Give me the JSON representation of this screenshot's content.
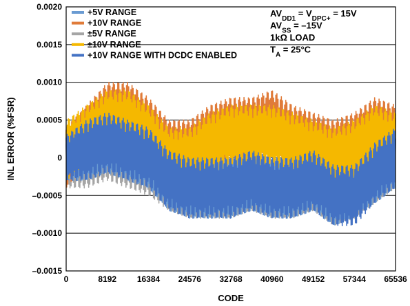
{
  "chart_data": {
    "type": "line",
    "xlabel": "CODE",
    "ylabel": "INL ERROR (%FSR)",
    "xlim": [
      0,
      65536
    ],
    "ylim": [
      -0.0015,
      0.002
    ],
    "x_ticks": [
      "0",
      "8192",
      "16384",
      "24576",
      "32768",
      "40960",
      "49152",
      "57344",
      "65536"
    ],
    "y_ticks": [
      "0.0020",
      "0.0015",
      "0.0010",
      "0.0005",
      "0",
      "–0.0005",
      "–0.0010",
      "–0.0015"
    ],
    "y_tick_values": [
      0.002,
      0.0015,
      0.001,
      0.0005,
      0,
      -0.0005,
      -0.001,
      -0.0015
    ],
    "x_tick_values": [
      0,
      8192,
      16384,
      24576,
      32768,
      40960,
      49152,
      57344,
      65536
    ],
    "grid": "horizontal",
    "legend_position": "top-left",
    "conditions": [
      {
        "main": "AV",
        "sub": "DD1",
        "rest": " = V",
        "sub2": "DPC+",
        "rest2": " = 15V"
      },
      {
        "main": "AV",
        "sub": "SS",
        "rest": " = –15V",
        "sub2": "",
        "rest2": ""
      },
      {
        "main": "1kΩ LOAD",
        "sub": "",
        "rest": "",
        "sub2": "",
        "rest2": ""
      },
      {
        "main": "T",
        "sub": "A",
        "rest": " = 25°C",
        "sub2": "",
        "rest2": ""
      }
    ],
    "series": [
      {
        "name": "+5V RANGE",
        "color": "#6a9bd2",
        "x": [
          0,
          4096,
          8192,
          12288,
          16384,
          20480,
          24576,
          28672,
          32768,
          36864,
          40960,
          45056,
          49152,
          53248,
          57344,
          61440,
          65536
        ],
        "y_mid": [
          0.0,
          0.0001,
          0.0002,
          0.0001,
          0.0,
          -0.0003,
          -0.0004,
          -0.0004,
          -0.0004,
          -0.0003,
          -0.0004,
          -0.0004,
          -0.0003,
          -0.0005,
          -0.0004,
          -0.0002,
          0.0
        ],
        "y_amp": [
          0.0003,
          0.0004,
          0.0004,
          0.0004,
          0.0004,
          0.0004,
          0.0004,
          0.0004,
          0.0004,
          0.0004,
          0.0004,
          0.0004,
          0.0004,
          0.0004,
          0.0004,
          0.0004,
          0.0004
        ]
      },
      {
        "name": "+10V RANGE",
        "color": "#e07b39",
        "x": [
          0,
          4096,
          8192,
          12288,
          16384,
          20480,
          24576,
          28672,
          32768,
          36864,
          40960,
          45056,
          49152,
          53248,
          57344,
          61440,
          65536
        ],
        "y_mid": [
          0.0,
          0.0003,
          0.0006,
          0.0006,
          0.0004,
          0.0001,
          0.0001,
          0.0003,
          0.0004,
          0.0004,
          0.0005,
          0.0003,
          0.0002,
          0.0001,
          0.0002,
          0.0004,
          0.0003
        ],
        "y_amp": [
          0.0004,
          0.0004,
          0.0004,
          0.0004,
          0.0004,
          0.0004,
          0.0004,
          0.0004,
          0.0004,
          0.0004,
          0.0004,
          0.0004,
          0.0004,
          0.0004,
          0.0004,
          0.0004,
          0.0004
        ]
      },
      {
        "name": "±5V RANGE",
        "color": "#a5a5a5",
        "x": [
          0,
          4096,
          8192,
          12288,
          16384,
          20480,
          24576,
          28672,
          32768,
          36864,
          40960,
          45056,
          49152,
          53248,
          57344,
          61440,
          65536
        ],
        "y_mid": [
          -0.0001,
          0.0,
          0.0001,
          0.0,
          -0.0001,
          -0.0003,
          -0.0004,
          -0.0004,
          -0.0004,
          -0.0003,
          -0.0004,
          -0.0004,
          -0.0003,
          -0.0005,
          -0.0004,
          -0.0002,
          0.0
        ],
        "y_amp": [
          0.0003,
          0.0004,
          0.0004,
          0.0004,
          0.0004,
          0.0004,
          0.0004,
          0.0004,
          0.0004,
          0.0004,
          0.0004,
          0.0004,
          0.0004,
          0.0004,
          0.0004,
          0.0004,
          0.0004
        ]
      },
      {
        "name": "±10V RANGE",
        "color": "#f5b800",
        "x": [
          0,
          4096,
          8192,
          12288,
          16384,
          20480,
          24576,
          28672,
          32768,
          36864,
          40960,
          45056,
          49152,
          53248,
          57344,
          61440,
          65536
        ],
        "y_mid": [
          0.0001,
          0.0003,
          0.0005,
          0.0005,
          0.0003,
          0.0,
          0.0,
          0.0002,
          0.0003,
          0.0003,
          0.0003,
          0.0002,
          0.0001,
          0.0,
          0.0001,
          0.0003,
          0.0002
        ],
        "y_amp": [
          0.0004,
          0.0004,
          0.0004,
          0.0004,
          0.0004,
          0.0004,
          0.0004,
          0.0004,
          0.0004,
          0.0004,
          0.0004,
          0.0004,
          0.0004,
          0.0004,
          0.0004,
          0.0004,
          0.0004
        ]
      },
      {
        "name": "+10V RANGE WITH DCDC ENABLED",
        "color": "#4472c4",
        "x": [
          0,
          4096,
          8192,
          12288,
          16384,
          20480,
          24576,
          28672,
          32768,
          36864,
          40960,
          45056,
          49152,
          53248,
          57344,
          61440,
          65536
        ],
        "y_mid": [
          0.0,
          0.0001,
          0.0002,
          0.0001,
          0.0,
          -0.0003,
          -0.0004,
          -0.0004,
          -0.0004,
          -0.0003,
          -0.0004,
          -0.0004,
          -0.0003,
          -0.0005,
          -0.0005,
          -0.0002,
          0.0
        ],
        "y_amp": [
          0.0003,
          0.0004,
          0.0004,
          0.0004,
          0.0004,
          0.0004,
          0.0004,
          0.0004,
          0.0004,
          0.0004,
          0.0004,
          0.0004,
          0.0004,
          0.0004,
          0.0004,
          0.0004,
          0.0004
        ]
      }
    ]
  }
}
